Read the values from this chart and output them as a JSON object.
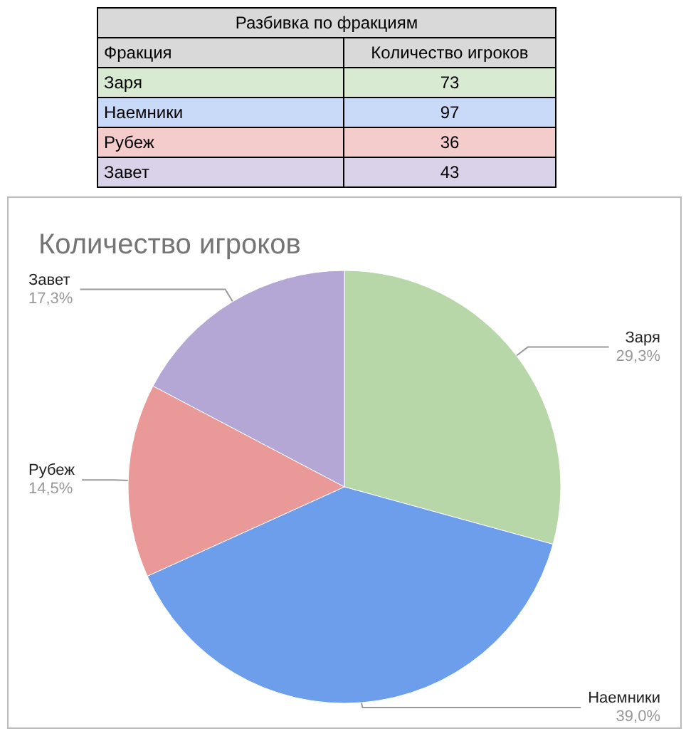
{
  "chart_data": [
    {
      "type": "other",
      "title": "Разбивка по фракциям",
      "xlabel": "Фракция",
      "ylabel": "Количество игроков",
      "categories": [
        "Заря",
        "Наемники",
        "Рубеж",
        "Завет"
      ],
      "values": [
        73,
        97,
        36,
        43
      ],
      "colors": [
        "#d9ead3",
        "#c9daf8",
        "#f4cccc",
        "#d9d2e9"
      ],
      "data_labels": true
    },
    {
      "type": "pie",
      "title": "Количество игроков",
      "categories": [
        "Заря",
        "Наемники",
        "Рубеж",
        "Завет"
      ],
      "values": [
        29.3,
        39.0,
        14.5,
        17.3
      ],
      "colors": [
        "#b7d7a8",
        "#6d9eeb",
        "#ea9999",
        "#b4a7d6"
      ],
      "value_labels": [
        "29,3%",
        "39,0%",
        "14,5%",
        "17,3%"
      ]
    }
  ]
}
